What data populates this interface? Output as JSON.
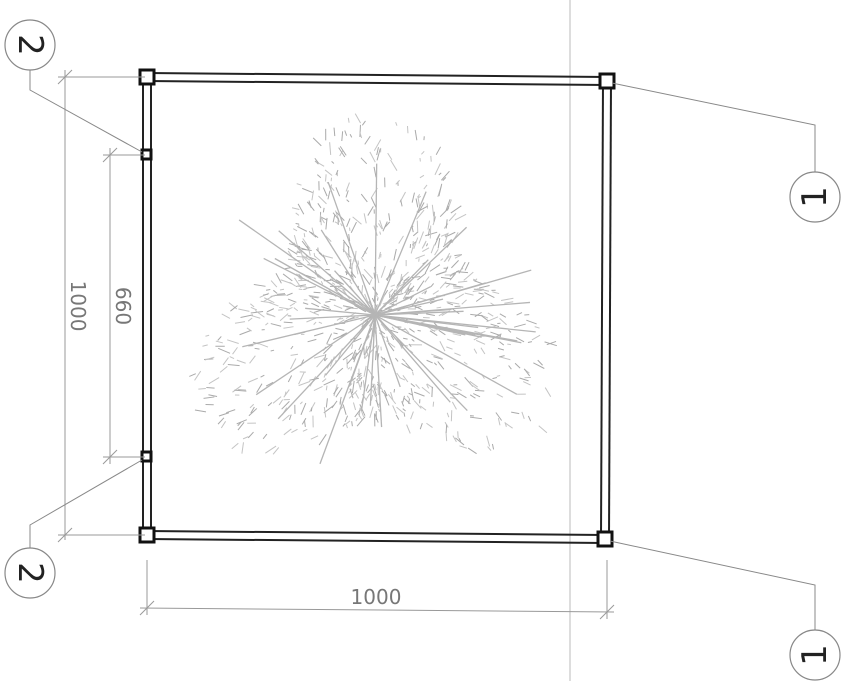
{
  "callouts": [
    {
      "label": "2"
    },
    {
      "label": "2"
    },
    {
      "label": "1"
    },
    {
      "label": "1"
    }
  ],
  "dimensions": [
    {
      "label": "1000"
    },
    {
      "label": "660"
    },
    {
      "label": "1000"
    }
  ]
}
